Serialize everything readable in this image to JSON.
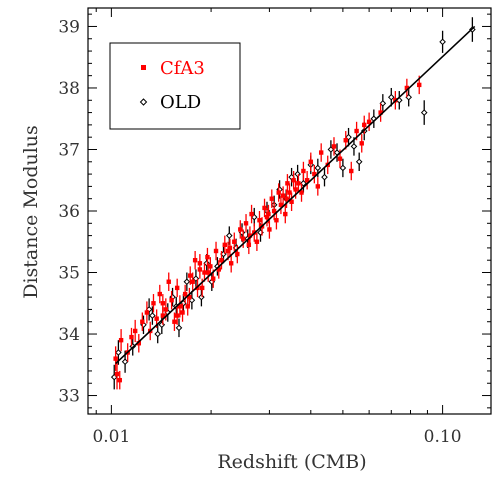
{
  "chart_data": {
    "type": "scatter",
    "title": "",
    "xlabel": "Redshift (CMB)",
    "ylabel": "Distance Modulus",
    "xscale": "log",
    "xlim": [
      0.0085,
      0.14
    ],
    "ylim": [
      32.7,
      39.3
    ],
    "x_ticks": [
      0.01,
      0.1
    ],
    "x_tick_labels": [
      "0.01",
      "0.10"
    ],
    "y_ticks": [
      33,
      34,
      35,
      36,
      37,
      38,
      39
    ],
    "y_tick_labels": [
      "33",
      "34",
      "35",
      "36",
      "37",
      "38",
      "39"
    ],
    "grid": false,
    "legend": {
      "position": "top-left",
      "boxed": true
    },
    "colors": {
      "CfA3": "#ff0000",
      "OLD": "#000000",
      "fit": "#000000"
    },
    "fit_line": {
      "x": [
        0.0103,
        0.125
      ],
      "y": [
        33.52,
        39.0
      ]
    },
    "series": [
      {
        "name": "CfA3",
        "marker": "filled-square",
        "points": [
          [
            0.0103,
            33.6,
            0.2
          ],
          [
            0.0104,
            33.35,
            0.25
          ],
          [
            0.0106,
            33.25,
            0.15
          ],
          [
            0.0107,
            33.9,
            0.18
          ],
          [
            0.0112,
            33.7,
            0.15
          ],
          [
            0.0115,
            33.95,
            0.15
          ],
          [
            0.0118,
            34.05,
            0.18
          ],
          [
            0.0121,
            33.85,
            0.15
          ],
          [
            0.0124,
            34.2,
            0.15
          ],
          [
            0.0128,
            34.35,
            0.18
          ],
          [
            0.0131,
            34.05,
            0.15
          ],
          [
            0.0134,
            34.5,
            0.15
          ],
          [
            0.0137,
            34.25,
            0.15
          ],
          [
            0.014,
            34.65,
            0.15
          ],
          [
            0.0143,
            34.3,
            0.15
          ],
          [
            0.0146,
            34.4,
            0.18
          ],
          [
            0.0149,
            34.85,
            0.15
          ],
          [
            0.0152,
            34.55,
            0.15
          ],
          [
            0.0155,
            34.2,
            0.15
          ],
          [
            0.0158,
            34.75,
            0.15
          ],
          [
            0.0161,
            34.45,
            0.18
          ],
          [
            0.0164,
            34.35,
            0.15
          ],
          [
            0.0167,
            34.65,
            0.15
          ],
          [
            0.017,
            34.45,
            0.15
          ],
          [
            0.0173,
            34.95,
            0.15
          ],
          [
            0.0176,
            34.85,
            0.15
          ],
          [
            0.0179,
            35.2,
            0.15
          ],
          [
            0.0182,
            34.75,
            0.15
          ],
          [
            0.0185,
            35.05,
            0.15
          ],
          [
            0.0188,
            34.75,
            0.15
          ],
          [
            0.0191,
            35.0,
            0.15
          ],
          [
            0.0195,
            35.25,
            0.15
          ],
          [
            0.0199,
            35.1,
            0.15
          ],
          [
            0.0203,
            34.9,
            0.15
          ],
          [
            0.0207,
            35.35,
            0.15
          ],
          [
            0.0211,
            35.05,
            0.15
          ],
          [
            0.0215,
            35.2,
            0.15
          ],
          [
            0.022,
            35.45,
            0.15
          ],
          [
            0.0225,
            35.35,
            0.15
          ],
          [
            0.023,
            35.15,
            0.15
          ],
          [
            0.0235,
            35.5,
            0.15
          ],
          [
            0.024,
            35.3,
            0.15
          ],
          [
            0.0245,
            35.7,
            0.15
          ],
          [
            0.025,
            35.55,
            0.15
          ],
          [
            0.0255,
            35.8,
            0.15
          ],
          [
            0.026,
            35.45,
            0.15
          ],
          [
            0.0265,
            35.95,
            0.15
          ],
          [
            0.027,
            35.65,
            0.15
          ],
          [
            0.0275,
            35.5,
            0.15
          ],
          [
            0.028,
            35.85,
            0.15
          ],
          [
            0.0285,
            35.75,
            0.15
          ],
          [
            0.029,
            36.05,
            0.15
          ],
          [
            0.0295,
            35.9,
            0.15
          ],
          [
            0.03,
            35.7,
            0.15
          ],
          [
            0.0305,
            36.2,
            0.15
          ],
          [
            0.031,
            36.0,
            0.15
          ],
          [
            0.0315,
            35.85,
            0.15
          ],
          [
            0.032,
            36.3,
            0.15
          ],
          [
            0.0325,
            36.1,
            0.15
          ],
          [
            0.033,
            36.25,
            0.15
          ],
          [
            0.0335,
            35.95,
            0.15
          ],
          [
            0.034,
            36.45,
            0.15
          ],
          [
            0.0345,
            36.3,
            0.15
          ],
          [
            0.035,
            36.15,
            0.15
          ],
          [
            0.0355,
            36.5,
            0.15
          ],
          [
            0.036,
            36.35,
            0.15
          ],
          [
            0.0367,
            36.45,
            0.15
          ],
          [
            0.0375,
            36.3,
            0.15
          ],
          [
            0.038,
            36.65,
            0.15
          ],
          [
            0.039,
            36.5,
            0.15
          ],
          [
            0.04,
            36.8,
            0.15
          ],
          [
            0.041,
            36.6,
            0.15
          ],
          [
            0.042,
            36.4,
            0.15
          ],
          [
            0.043,
            36.95,
            0.15
          ],
          [
            0.045,
            36.75,
            0.15
          ],
          [
            0.047,
            37.05,
            0.15
          ],
          [
            0.049,
            36.85,
            0.15
          ],
          [
            0.051,
            37.15,
            0.15
          ],
          [
            0.053,
            36.65,
            0.15
          ],
          [
            0.055,
            37.3,
            0.15
          ],
          [
            0.057,
            37.1,
            0.15
          ],
          [
            0.058,
            37.4,
            0.15
          ],
          [
            0.06,
            37.45,
            0.15
          ],
          [
            0.065,
            37.6,
            0.15
          ],
          [
            0.072,
            37.8,
            0.15
          ],
          [
            0.078,
            38.0,
            0.15
          ],
          [
            0.085,
            38.05,
            0.15
          ],
          [
            0.0185,
            35.15,
            0.15
          ],
          [
            0.0196,
            35.0,
            0.15
          ],
          [
            0.0228,
            35.4,
            0.15
          ],
          [
            0.0262,
            35.6,
            0.15
          ],
          [
            0.0298,
            35.95,
            0.15
          ],
          [
            0.0338,
            36.2,
            0.15
          ],
          [
            0.0158,
            34.3,
            0.15
          ],
          [
            0.0172,
            34.6,
            0.15
          ],
          [
            0.0143,
            34.5,
            0.15
          ]
        ]
      },
      {
        "name": "OLD",
        "marker": "open-diamond",
        "points": [
          [
            0.0102,
            33.3,
            0.2
          ],
          [
            0.0105,
            33.7,
            0.2
          ],
          [
            0.011,
            33.55,
            0.18
          ],
          [
            0.0116,
            33.8,
            0.15
          ],
          [
            0.0125,
            34.15,
            0.15
          ],
          [
            0.013,
            34.4,
            0.18
          ],
          [
            0.0133,
            34.3,
            0.15
          ],
          [
            0.0138,
            34.0,
            0.15
          ],
          [
            0.0142,
            34.15,
            0.15
          ],
          [
            0.0148,
            34.35,
            0.15
          ],
          [
            0.0153,
            34.6,
            0.15
          ],
          [
            0.0157,
            34.45,
            0.15
          ],
          [
            0.016,
            34.1,
            0.15
          ],
          [
            0.0165,
            34.5,
            0.15
          ],
          [
            0.0169,
            34.85,
            0.15
          ],
          [
            0.0175,
            34.55,
            0.15
          ],
          [
            0.018,
            34.9,
            0.15
          ],
          [
            0.0187,
            34.6,
            0.15
          ],
          [
            0.0194,
            35.15,
            0.15
          ],
          [
            0.0201,
            34.85,
            0.15
          ],
          [
            0.0209,
            35.1,
            0.15
          ],
          [
            0.0218,
            35.3,
            0.15
          ],
          [
            0.0227,
            35.6,
            0.15
          ],
          [
            0.0238,
            35.4,
            0.15
          ],
          [
            0.0248,
            35.65,
            0.15
          ],
          [
            0.0258,
            35.55,
            0.15
          ],
          [
            0.027,
            35.9,
            0.15
          ],
          [
            0.0282,
            35.65,
            0.15
          ],
          [
            0.0295,
            36.0,
            0.15
          ],
          [
            0.031,
            36.1,
            0.15
          ],
          [
            0.0322,
            36.35,
            0.15
          ],
          [
            0.0337,
            36.2,
            0.15
          ],
          [
            0.035,
            36.55,
            0.15
          ],
          [
            0.0365,
            36.6,
            0.15
          ],
          [
            0.038,
            36.45,
            0.15
          ],
          [
            0.04,
            36.75,
            0.15
          ],
          [
            0.042,
            36.7,
            0.15
          ],
          [
            0.044,
            36.55,
            0.15
          ],
          [
            0.046,
            37.0,
            0.15
          ],
          [
            0.048,
            36.95,
            0.15
          ],
          [
            0.05,
            36.7,
            0.15
          ],
          [
            0.052,
            37.2,
            0.15
          ],
          [
            0.054,
            37.05,
            0.15
          ],
          [
            0.056,
            36.8,
            0.15
          ],
          [
            0.058,
            37.3,
            0.15
          ],
          [
            0.062,
            37.5,
            0.15
          ],
          [
            0.066,
            37.75,
            0.15
          ],
          [
            0.07,
            37.85,
            0.15
          ],
          [
            0.074,
            37.8,
            0.15
          ],
          [
            0.079,
            37.85,
            0.15
          ],
          [
            0.088,
            37.6,
            0.2
          ],
          [
            0.1,
            38.75,
            0.18
          ],
          [
            0.123,
            38.95,
            0.2
          ]
        ]
      }
    ]
  }
}
